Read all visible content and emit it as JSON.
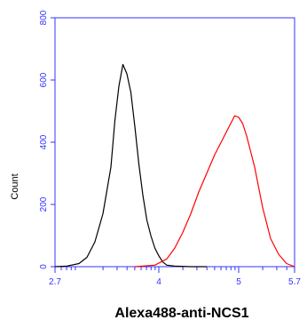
{
  "chart_data": {
    "type": "line",
    "title": "",
    "xlabel": "Alexa488-anti-NCS1",
    "ylabel": "Count",
    "x_scale": "log",
    "xlim": [
      2.7,
      5.7
    ],
    "ylim": [
      0,
      800
    ],
    "x_ticks": [
      {
        "value": 2.7,
        "label": "2.7"
      },
      {
        "value": 4,
        "label": "4"
      },
      {
        "value": 5,
        "label": "5"
      },
      {
        "value": 5.7,
        "label": "5.7"
      }
    ],
    "y_ticks": [
      {
        "value": 0,
        "label": "0"
      },
      {
        "value": 200,
        "label": "200"
      },
      {
        "value": 400,
        "label": "400"
      },
      {
        "value": 600,
        "label": "600"
      },
      {
        "value": 800,
        "label": "800"
      }
    ],
    "grid": false,
    "axis_color": "#3333ff",
    "series": [
      {
        "color": "#000000",
        "x": [
          2.7,
          2.85,
          3.0,
          3.1,
          3.2,
          3.3,
          3.4,
          3.45,
          3.5,
          3.55,
          3.6,
          3.65,
          3.7,
          3.75,
          3.8,
          3.85,
          3.9,
          3.95,
          4.0,
          4.05,
          4.1,
          4.2,
          4.4,
          4.6
        ],
        "y": [
          0,
          2,
          10,
          30,
          80,
          170,
          320,
          470,
          580,
          650,
          620,
          560,
          450,
          330,
          230,
          150,
          100,
          60,
          35,
          15,
          5,
          2,
          0,
          0
        ]
      },
      {
        "color": "#ff0000",
        "x": [
          3.7,
          3.95,
          4.1,
          4.2,
          4.3,
          4.4,
          4.5,
          4.6,
          4.7,
          4.8,
          4.9,
          4.95,
          5.0,
          5.05,
          5.1,
          5.2,
          5.3,
          5.4,
          5.5,
          5.6,
          5.7
        ],
        "y": [
          0,
          5,
          25,
          60,
          110,
          170,
          240,
          300,
          360,
          410,
          460,
          485,
          480,
          460,
          420,
          320,
          190,
          90,
          40,
          10,
          0
        ]
      }
    ]
  }
}
